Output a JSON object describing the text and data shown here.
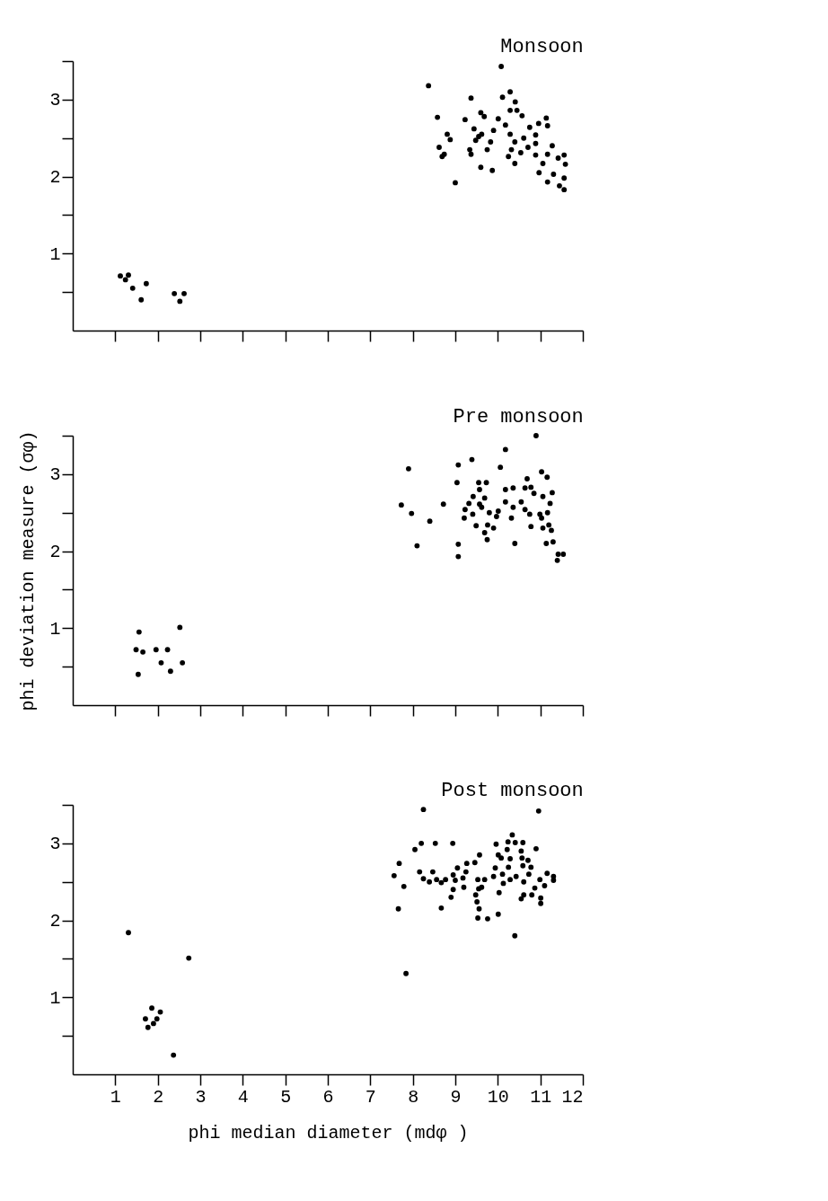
{
  "chart_data": [
    {
      "type": "scatter",
      "title": "Monsoon",
      "marker": "circle",
      "grid": false,
      "legend": false,
      "tick_labels": "y",
      "xlim": [
        0,
        12
      ],
      "xticks": [
        1,
        2,
        3,
        4,
        5,
        6,
        7,
        8,
        9,
        10,
        11,
        12
      ],
      "ylim": [
        0,
        3.5
      ],
      "yticks": [
        {
          "value": 0.5,
          "label": null
        },
        1,
        {
          "value": 1.5,
          "label": null
        },
        2,
        {
          "value": 2.5,
          "label": null
        },
        3,
        {
          "value": 3.5,
          "label": null
        }
      ],
      "series": [
        {
          "color": "#000000",
          "x": [
            1.12,
            1.31,
            1.24,
            1.41,
            1.61,
            1.73,
            2.39,
            2.62,
            2.52,
            8.37,
            9.37,
            10.11,
            10.29,
            10.41,
            10.29,
            10.45,
            8.58,
            9.23,
            9.6,
            9.68,
            10.01,
            10.57,
            11.14,
            11.17,
            10.96,
            10.75,
            9.44,
            10.18,
            9.9,
            9.62,
            9.48,
            9.83,
            10.29,
            10.4,
            10.61,
            10.89,
            10.89,
            10.71,
            10.32,
            10.25,
            10.4,
            10.54,
            8.81,
            8.88,
            8.62,
            8.74,
            8.69,
            9.34,
            9.37,
            9.75,
            9.6,
            9.87,
            9.0,
            10.89,
            11.28,
            11.17,
            11.42,
            11.56,
            11.59,
            11.06,
            10.97,
            11.31,
            11.56,
            11.17,
            11.45,
            11.56,
            10.08,
            9.55
          ],
          "values": [
            0.71,
            0.72,
            0.66,
            0.55,
            0.4,
            0.61,
            0.48,
            0.48,
            0.38,
            3.18,
            3.02,
            3.03,
            3.1,
            2.97,
            2.86,
            2.86,
            2.77,
            2.74,
            2.83,
            2.78,
            2.75,
            2.79,
            2.76,
            2.66,
            2.69,
            2.64,
            2.62,
            2.67,
            2.6,
            2.55,
            2.47,
            2.45,
            2.55,
            2.45,
            2.5,
            2.54,
            2.43,
            2.38,
            2.35,
            2.26,
            2.17,
            2.31,
            2.55,
            2.48,
            2.38,
            2.29,
            2.26,
            2.35,
            2.29,
            2.35,
            2.12,
            2.08,
            1.92,
            2.28,
            2.4,
            2.29,
            2.24,
            2.28,
            2.16,
            2.17,
            2.05,
            2.03,
            1.98,
            1.93,
            1.88,
            1.83,
            3.43,
            2.52
          ]
        }
      ]
    },
    {
      "type": "scatter",
      "title": "Pre monsoon",
      "ylabel": "phi deviation measure (σφ)",
      "marker": "circle",
      "grid": false,
      "legend": false,
      "tick_labels": "y",
      "xlim": [
        0,
        12
      ],
      "xticks": [
        1,
        2,
        3,
        4,
        5,
        6,
        7,
        8,
        9,
        10,
        11,
        12
      ],
      "ylim": [
        0,
        3.5
      ],
      "yticks": [
        {
          "value": 0.5,
          "label": null
        },
        1,
        {
          "value": 1.5,
          "label": null
        },
        2,
        {
          "value": 2.5,
          "label": null
        },
        3,
        {
          "value": 3.5,
          "label": null
        }
      ],
      "series": [
        {
          "color": "#000000",
          "x": [
            1.56,
            1.49,
            1.65,
            1.96,
            2.23,
            2.08,
            2.3,
            2.58,
            2.52,
            1.54,
            10.9,
            10.18,
            9.39,
            9.07,
            10.06,
            7.9,
            11.03,
            11.16,
            9.04,
            10.69,
            9.55,
            9.73,
            10.18,
            10.36,
            10.64,
            10.78,
            9.57,
            11.28,
            9.42,
            9.69,
            11.06,
            10.85,
            7.73,
            8.72,
            9.32,
            9.57,
            10.18,
            10.55,
            11.23,
            7.97,
            9.23,
            9.41,
            9.62,
            9.8,
            10.01,
            10.36,
            10.64,
            10.75,
            10.99,
            11.17,
            9.21,
            9.97,
            10.32,
            11.03,
            8.4,
            9.49,
            9.76,
            9.9,
            10.78,
            11.06,
            11.2,
            11.26,
            9.69,
            9.75,
            8.1,
            9.07,
            10.4,
            11.14,
            11.3,
            9.07,
            11.42,
            11.54,
            11.4
          ],
          "values": [
            0.95,
            0.72,
            0.69,
            0.72,
            0.72,
            0.55,
            0.44,
            0.55,
            1.01,
            0.4,
            3.5,
            3.32,
            3.19,
            3.12,
            3.09,
            3.07,
            3.03,
            2.96,
            2.89,
            2.94,
            2.89,
            2.89,
            2.8,
            2.82,
            2.82,
            2.83,
            2.8,
            2.76,
            2.71,
            2.69,
            2.71,
            2.75,
            2.6,
            2.61,
            2.62,
            2.61,
            2.64,
            2.64,
            2.62,
            2.49,
            2.54,
            2.48,
            2.57,
            2.5,
            2.52,
            2.57,
            2.54,
            2.48,
            2.48,
            2.5,
            2.43,
            2.45,
            2.43,
            2.43,
            2.39,
            2.33,
            2.34,
            2.3,
            2.32,
            2.3,
            2.34,
            2.27,
            2.24,
            2.15,
            2.07,
            2.09,
            2.1,
            2.1,
            2.12,
            1.93,
            1.96,
            1.96,
            1.88
          ]
        }
      ]
    },
    {
      "type": "scatter",
      "title": "Post monsoon",
      "xlabel": "phi median diameter (mdφ )",
      "marker": "circle",
      "grid": false,
      "legend": false,
      "xlim": [
        0,
        12
      ],
      "xticks": [
        1,
        2,
        3,
        4,
        5,
        6,
        7,
        8,
        9,
        10,
        11,
        12
      ],
      "ylim": [
        0,
        3.5
      ],
      "yticks": [
        {
          "value": 0.5,
          "label": null
        },
        1,
        {
          "value": 1.5,
          "label": null
        },
        2,
        {
          "value": 2.5,
          "label": null
        },
        3,
        {
          "value": 3.5,
          "label": null
        }
      ],
      "series": [
        {
          "color": "#000000",
          "x": [
            1.31,
            2.73,
            7.84,
            1.71,
            1.86,
            2.06,
            1.98,
            1.9,
            1.77,
            2.37,
            8.25,
            10.96,
            10.34,
            8.2,
            8.53,
            8.94,
            9.96,
            10.24,
            10.41,
            10.59,
            8.05,
            10.9,
            10.01,
            10.22,
            10.55,
            9.57,
            10.08,
            10.29,
            10.57,
            10.71,
            7.68,
            9.27,
            9.46,
            9.05,
            9.94,
            10.25,
            10.59,
            10.78,
            8.16,
            8.47,
            9.25,
            7.56,
            8.25,
            8.39,
            8.56,
            8.67,
            8.77,
            8.95,
            9.0,
            9.18,
            9.53,
            9.69,
            9.9,
            10.11,
            10.29,
            10.43,
            10.61,
            10.73,
            10.99,
            11.16,
            11.31,
            11.31,
            11.1,
            7.79,
            9.2,
            9.55,
            9.62,
            10.03,
            10.13,
            10.87,
            8.95,
            9.48,
            10.61,
            10.55,
            10.8,
            11.01,
            8.9,
            9.51,
            11.01,
            7.66,
            8.67,
            9.56,
            9.53,
            9.76,
            10.01,
            10.4
          ],
          "values": [
            1.84,
            1.51,
            1.31,
            0.72,
            0.86,
            0.81,
            0.72,
            0.66,
            0.61,
            0.25,
            3.44,
            3.42,
            3.11,
            3.0,
            3.0,
            3.0,
            2.99,
            3.02,
            3.01,
            3.01,
            2.92,
            2.93,
            2.85,
            2.92,
            2.9,
            2.85,
            2.81,
            2.8,
            2.81,
            2.78,
            2.74,
            2.74,
            2.75,
            2.68,
            2.68,
            2.69,
            2.71,
            2.69,
            2.63,
            2.63,
            2.63,
            2.58,
            2.54,
            2.5,
            2.53,
            2.49,
            2.53,
            2.59,
            2.52,
            2.55,
            2.53,
            2.53,
            2.57,
            2.6,
            2.53,
            2.57,
            2.5,
            2.6,
            2.53,
            2.61,
            2.52,
            2.57,
            2.45,
            2.44,
            2.43,
            2.41,
            2.43,
            2.36,
            2.48,
            2.42,
            2.4,
            2.33,
            2.33,
            2.28,
            2.33,
            2.29,
            2.3,
            2.24,
            2.22,
            2.15,
            2.16,
            2.15,
            2.03,
            2.02,
            2.08,
            1.8
          ]
        }
      ]
    }
  ]
}
